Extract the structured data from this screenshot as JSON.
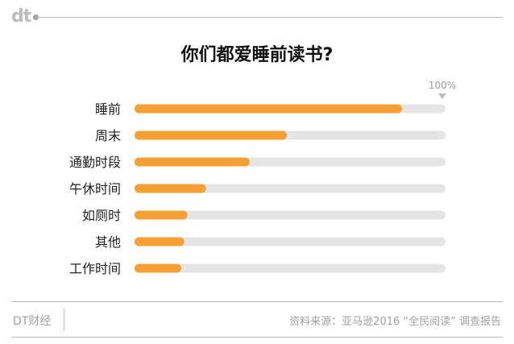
{
  "header": {
    "logo_text": "dt",
    "title": "你们都爱睡前读书?"
  },
  "footer": {
    "brand": "DT财经",
    "source": "资料来源：亚马逊2016 “全民阅读” 调查报告"
  },
  "colors": {
    "bar": "#f6a033",
    "track": "#e5e5e5",
    "text": "#222222",
    "muted": "#9a9a9a"
  },
  "chart_data": {
    "type": "bar",
    "orientation": "horizontal",
    "title": "你们都爱睡前读书?",
    "categories": [
      "睡前",
      "周末",
      "通勤时段",
      "午休时间",
      "如厕时",
      "其他",
      "工作时间"
    ],
    "values": [
      86,
      49,
      37,
      23,
      17,
      16,
      15
    ],
    "max_label": "100%",
    "xlim": [
      0,
      100
    ],
    "grid": false
  }
}
